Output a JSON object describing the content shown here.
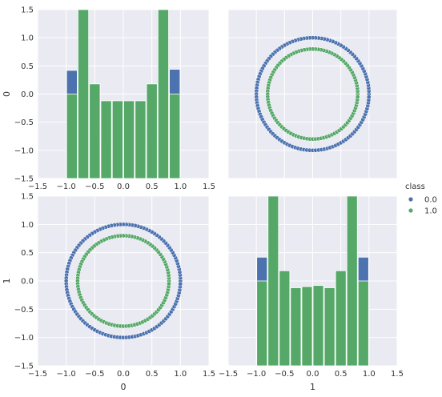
{
  "figure": {
    "legend": {
      "title": "class",
      "placement": "right",
      "entries": [
        {
          "label": "0.0",
          "color": "#4c72b0"
        },
        {
          "label": "1.0",
          "color": "#55a868"
        }
      ]
    }
  },
  "chart_data": [
    {
      "type": "bar",
      "subtype": "stacked-histogram",
      "panel": "row0-col0",
      "xlabel": "",
      "ylabel": "0",
      "xlim": [
        -1.5,
        1.5
      ],
      "ylim": [
        -1.5,
        1.5
      ],
      "xticks": [
        "-1.5",
        "-1.0",
        "-0.5",
        "0.0",
        "0.5",
        "1.0",
        "1.5"
      ],
      "yticks": [
        "-1.5",
        "-1.0",
        "-0.5",
        "0.0",
        "0.5",
        "1.0",
        "1.5"
      ],
      "grid": true,
      "bin_edges": [
        -1.0,
        -0.8,
        -0.6,
        -0.4,
        -0.2,
        0.0,
        0.2,
        0.4,
        0.6,
        0.8,
        1.0
      ],
      "series": [
        {
          "name": "0.0",
          "color": "#4c72b0",
          "values": [
            0.42,
            -0.68,
            -0.8,
            -0.88,
            -0.88,
            -0.88,
            -0.9,
            -0.8,
            -0.68,
            0.44
          ]
        },
        {
          "name": "1.0",
          "color": "#55a868",
          "values": [
            0.0,
            1.5,
            0.18,
            -0.12,
            -0.12,
            -0.12,
            -0.12,
            0.18,
            1.5,
            0.0
          ]
        }
      ]
    },
    {
      "type": "scatter",
      "panel": "row0-col1",
      "xlabel": "",
      "ylabel": "",
      "xlim": [
        -1.5,
        1.5
      ],
      "ylim": [
        -1.5,
        1.5
      ],
      "grid": true,
      "series": [
        {
          "name": "0.0",
          "color": "#4c72b0",
          "shape": "circle",
          "radius": 1.0,
          "count": 120
        },
        {
          "name": "1.0",
          "color": "#55a868",
          "shape": "circle",
          "radius": 0.8,
          "count": 100
        }
      ]
    },
    {
      "type": "scatter",
      "panel": "row1-col0",
      "xlabel": "0",
      "ylabel": "1",
      "xlim": [
        -1.5,
        1.5
      ],
      "ylim": [
        -1.5,
        1.5
      ],
      "xticks": [
        "-1.5",
        "-1.0",
        "-0.5",
        "0.0",
        "0.5",
        "1.0",
        "1.5"
      ],
      "yticks": [
        "-1.5",
        "-1.0",
        "-0.5",
        "0.0",
        "0.5",
        "1.0",
        "1.5"
      ],
      "grid": true,
      "series": [
        {
          "name": "0.0",
          "color": "#4c72b0",
          "shape": "circle",
          "radius": 1.0,
          "count": 120
        },
        {
          "name": "1.0",
          "color": "#55a868",
          "shape": "circle",
          "radius": 0.8,
          "count": 100
        }
      ]
    },
    {
      "type": "bar",
      "subtype": "stacked-histogram",
      "panel": "row1-col1",
      "xlabel": "1",
      "ylabel": "",
      "xlim": [
        -1.5,
        1.5
      ],
      "ylim": [
        -1.5,
        1.5
      ],
      "xticks": [
        "-1.5",
        "-1.0",
        "-0.5",
        "0.0",
        "0.5",
        "1.0",
        "1.5"
      ],
      "grid": true,
      "bin_edges": [
        -1.0,
        -0.8,
        -0.6,
        -0.4,
        -0.2,
        0.0,
        0.2,
        0.4,
        0.6,
        0.8,
        1.0
      ],
      "series": [
        {
          "name": "0.0",
          "color": "#4c72b0",
          "values": [
            0.42,
            -0.68,
            -0.8,
            -0.9,
            -0.9,
            -0.88,
            -0.88,
            -0.8,
            -0.66,
            0.42
          ]
        },
        {
          "name": "1.0",
          "color": "#55a868",
          "values": [
            0.0,
            1.5,
            0.18,
            -0.12,
            -0.1,
            -0.08,
            -0.12,
            0.18,
            1.5,
            0.0
          ]
        }
      ]
    }
  ]
}
